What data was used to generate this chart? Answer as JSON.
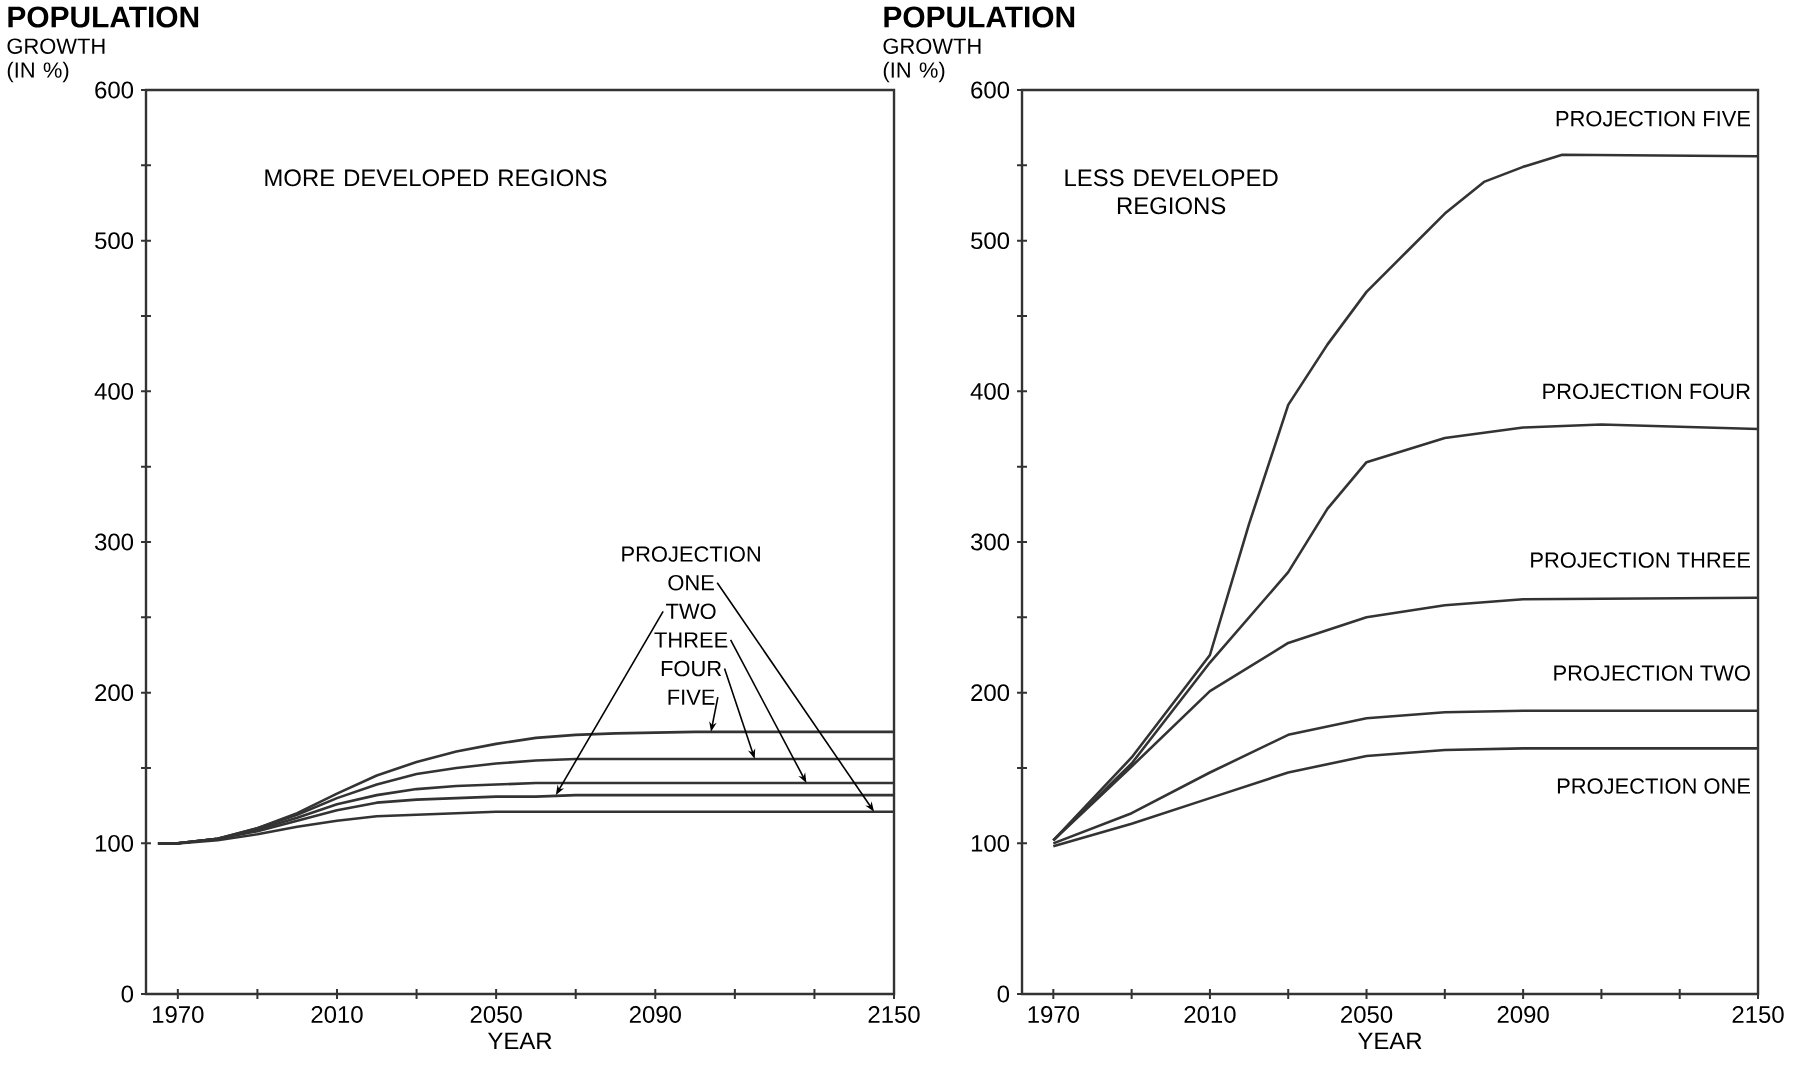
{
  "chart_data": [
    {
      "type": "line",
      "title": "POPULATION",
      "ylabel": "GROWTH (IN %)",
      "xlabel": "YEAR",
      "subtitle": "MORE DEVELOPED REGIONS",
      "xlim": [
        1962,
        2150
      ],
      "ylim": [
        0,
        600
      ],
      "xticks": [
        1970,
        {
          "value": 1990,
          "label": null
        },
        2010,
        {
          "value": 2030,
          "label": null
        },
        2050,
        {
          "value": 2070,
          "label": null
        },
        2090,
        {
          "value": 2110,
          "label": null
        },
        {
          "value": 2130,
          "label": null
        },
        2150
      ],
      "yticks": [
        0,
        100,
        {
          "value": 150,
          "label": null
        },
        200,
        {
          "value": 250,
          "label": null
        },
        300,
        {
          "value": 350,
          "label": null
        },
        400,
        {
          "value": 450,
          "label": null
        },
        500,
        {
          "value": 550,
          "label": null
        },
        600
      ],
      "marker": "none",
      "line_style": "solid",
      "x": [
        1965,
        1970,
        1980,
        1990,
        2000,
        2010,
        2020,
        2030,
        2040,
        2050,
        2060,
        2070,
        2080,
        2100,
        2120,
        2150
      ],
      "series": [
        {
          "color": "#333333",
          "values": [
            100,
            100,
            102,
            106,
            111,
            115,
            118,
            119,
            120,
            121,
            121,
            121,
            121,
            121,
            121,
            121
          ]
        },
        {
          "color": "#333333",
          "values": [
            100,
            100,
            103,
            108,
            115,
            122,
            127,
            129,
            130,
            131,
            131,
            132,
            132,
            132,
            132,
            132
          ]
        },
        {
          "color": "#333333",
          "values": [
            100,
            100,
            103,
            109,
            117,
            126,
            132,
            136,
            138,
            139,
            140,
            140,
            140,
            140,
            140,
            140
          ]
        },
        {
          "color": "#333333",
          "values": [
            100,
            100,
            103,
            110,
            119,
            130,
            139,
            146,
            150,
            153,
            155,
            156,
            156,
            156,
            156,
            156
          ]
        },
        {
          "color": "#333333",
          "values": [
            100,
            100,
            103,
            110,
            120,
            133,
            145,
            154,
            161,
            166,
            170,
            172,
            173,
            174,
            174,
            174
          ]
        }
      ],
      "annotations": [
        "PROJECTION",
        {
          "text": "ONE",
          "x": 2145,
          "y": 121
        },
        {
          "text": "TWO",
          "x": 2065,
          "y": 132
        },
        {
          "text": "THREE",
          "x": 2128,
          "y": 140
        },
        {
          "text": "FOUR",
          "x": 2115,
          "y": 156
        },
        {
          "text": "FIVE",
          "x": 2104,
          "y": 174
        }
      ]
    },
    {
      "type": "line",
      "title": "POPULATION",
      "ylabel": "GROWTH (IN %)",
      "xlabel": "YEAR",
      "subtitle": "LESS DEVELOPED REGIONS",
      "xlim": [
        1962,
        2150
      ],
      "ylim": [
        0,
        600
      ],
      "xticks": [
        1970,
        {
          "value": 1990,
          "label": null
        },
        2010,
        {
          "value": 2030,
          "label": null
        },
        2050,
        {
          "value": 2070,
          "label": null
        },
        2090,
        {
          "value": 2110,
          "label": null
        },
        {
          "value": 2130,
          "label": null
        },
        2150
      ],
      "yticks": [
        0,
        100,
        {
          "value": 150,
          "label": null
        },
        200,
        {
          "value": 250,
          "label": null
        },
        300,
        {
          "value": 350,
          "label": null
        },
        400,
        {
          "value": 450,
          "label": null
        },
        500,
        {
          "value": 550,
          "label": null
        },
        600
      ],
      "marker": "none",
      "line_style": "solid",
      "series": [
        {
          "name": "PROJECTION ONE",
          "color": "#333333",
          "x": [
            1970,
            1990,
            2010,
            2030,
            2050,
            2070,
            2090,
            2150
          ],
          "values": [
            98,
            113,
            130,
            147,
            158,
            162,
            163,
            163
          ]
        },
        {
          "name": "PROJECTION TWO",
          "color": "#333333",
          "x": [
            1970,
            1990,
            2010,
            2030,
            2050,
            2070,
            2090,
            2150
          ],
          "values": [
            100,
            120,
            147,
            172,
            183,
            187,
            188,
            188
          ]
        },
        {
          "name": "PROJECTION THREE",
          "color": "#333333",
          "x": [
            1970,
            1990,
            2010,
            2030,
            2050,
            2070,
            2090,
            2150
          ],
          "values": [
            102,
            151,
            201,
            233,
            250,
            258,
            262,
            263
          ]
        },
        {
          "name": "PROJECTION FOUR",
          "color": "#333333",
          "x": [
            1970,
            1990,
            2010,
            2030,
            2040,
            2050,
            2070,
            2090,
            2110,
            2150
          ],
          "values": [
            102,
            153,
            220,
            280,
            322,
            353,
            369,
            376,
            378,
            375
          ]
        },
        {
          "name": "PROJECTION FIVE",
          "color": "#333333",
          "x": [
            1970,
            1990,
            2010,
            2020,
            2030,
            2040,
            2050,
            2060,
            2070,
            2080,
            2090,
            2100,
            2150
          ],
          "values": [
            102,
            157,
            225,
            312,
            391,
            431,
            466,
            492,
            518,
            539,
            549,
            557,
            556
          ]
        }
      ]
    }
  ]
}
